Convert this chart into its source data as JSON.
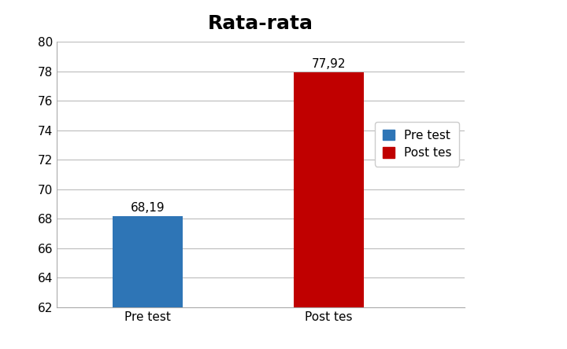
{
  "title": "Rata-rata",
  "categories": [
    "Pre test",
    "Post tes"
  ],
  "values": [
    68.19,
    77.92
  ],
  "bar_colors": [
    "#2E75B6",
    "#C00000"
  ],
  "labels": [
    "68,19",
    "77,92"
  ],
  "legend_labels": [
    "Pre test",
    "Post tes"
  ],
  "ylim": [
    62,
    80
  ],
  "yticks": [
    62,
    64,
    66,
    68,
    70,
    72,
    74,
    76,
    78,
    80
  ],
  "title_fontsize": 18,
  "tick_fontsize": 11,
  "label_fontsize": 11,
  "legend_fontsize": 11,
  "bar_width": 0.35,
  "background_color": "#FFFFFF",
  "grid_color": "#BBBBBB",
  "spine_color": "#AAAAAA"
}
